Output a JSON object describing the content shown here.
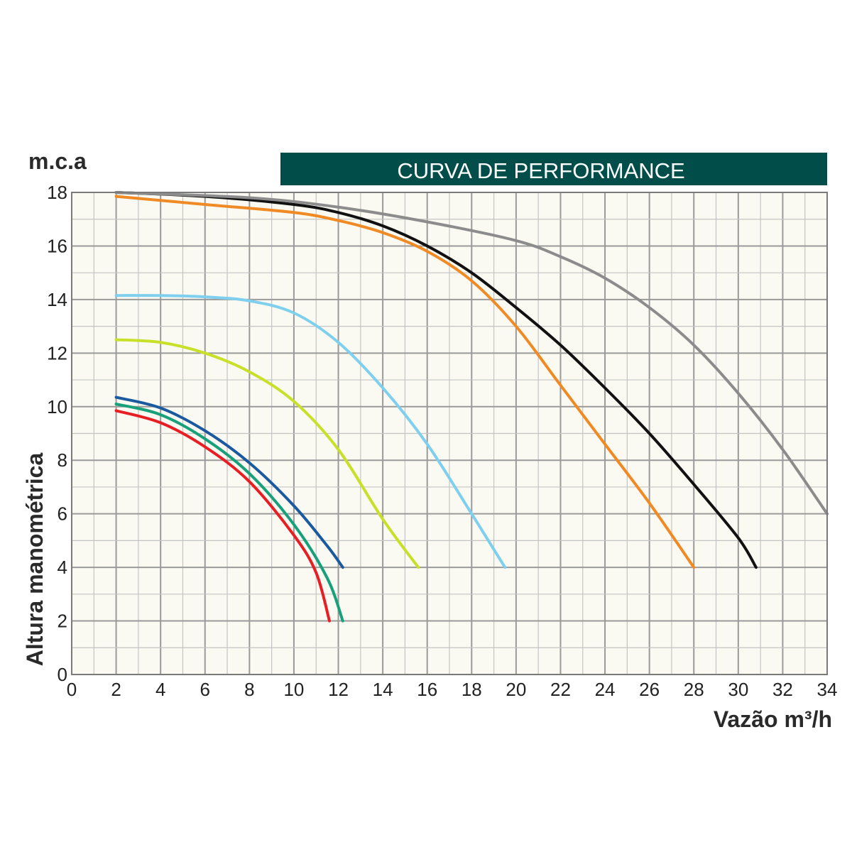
{
  "chart_data": {
    "type": "line",
    "title": "CURVA DE PERFORMANCE",
    "xlabel": "Vazão m³/h",
    "ylabel": "Altura manométrica",
    "y_unit": "m.c.a",
    "xlim": [
      0,
      34
    ],
    "ylim": [
      0,
      18
    ],
    "x_ticks": [
      "0",
      "2",
      "4",
      "6",
      "8",
      "10",
      "12",
      "14",
      "16",
      "18",
      "20",
      "22",
      "24",
      "26",
      "28",
      "30",
      "32",
      "34"
    ],
    "y_ticks": [
      "0",
      "2",
      "4",
      "6",
      "8",
      "10",
      "12",
      "14",
      "16",
      "18"
    ],
    "grid": true,
    "colors": {
      "title_bar": "#004d4a",
      "grid_major": "#9a9a9a",
      "grid_minor": "#c4c4c4",
      "plot_bg": "#fafaf2"
    },
    "series": [
      {
        "color": "#e81e25",
        "points": [
          [
            2,
            9.85
          ],
          [
            4,
            9.4
          ],
          [
            6,
            8.5
          ],
          [
            8,
            7.2
          ],
          [
            10,
            5.2
          ],
          [
            11,
            3.8
          ],
          [
            11.6,
            2.0
          ]
        ]
      },
      {
        "color": "#17a07a",
        "points": [
          [
            2,
            10.1
          ],
          [
            4,
            9.7
          ],
          [
            6,
            8.8
          ],
          [
            8,
            7.5
          ],
          [
            10,
            5.6
          ],
          [
            11.5,
            3.6
          ],
          [
            12.2,
            2.0
          ]
        ]
      },
      {
        "color": "#1c5aa0",
        "points": [
          [
            2,
            10.35
          ],
          [
            4,
            9.95
          ],
          [
            6,
            9.1
          ],
          [
            8,
            7.9
          ],
          [
            10,
            6.3
          ],
          [
            11.5,
            4.8
          ],
          [
            12.2,
            4.0
          ]
        ]
      },
      {
        "color": "#c8e02a",
        "points": [
          [
            2,
            12.5
          ],
          [
            4,
            12.4
          ],
          [
            6,
            12.0
          ],
          [
            8,
            11.3
          ],
          [
            10,
            10.2
          ],
          [
            12,
            8.4
          ],
          [
            14,
            5.8
          ],
          [
            15.6,
            4.0
          ]
        ]
      },
      {
        "color": "#7fcfee",
        "points": [
          [
            2,
            14.15
          ],
          [
            4,
            14.15
          ],
          [
            6,
            14.1
          ],
          [
            8,
            13.95
          ],
          [
            10,
            13.5
          ],
          [
            12,
            12.4
          ],
          [
            14,
            10.7
          ],
          [
            16,
            8.6
          ],
          [
            18,
            6.0
          ],
          [
            19.5,
            4.0
          ]
        ]
      },
      {
        "color": "#f08a24",
        "points": [
          [
            2,
            17.85
          ],
          [
            6,
            17.55
          ],
          [
            10,
            17.25
          ],
          [
            12,
            16.95
          ],
          [
            14,
            16.5
          ],
          [
            16,
            15.8
          ],
          [
            18,
            14.7
          ],
          [
            20,
            13.0
          ],
          [
            22,
            10.8
          ],
          [
            24,
            8.6
          ],
          [
            26,
            6.4
          ],
          [
            28.0,
            4.0
          ]
        ]
      },
      {
        "color": "#111111",
        "points": [
          [
            2,
            18.0
          ],
          [
            6,
            17.85
          ],
          [
            10,
            17.55
          ],
          [
            12,
            17.25
          ],
          [
            14,
            16.75
          ],
          [
            16,
            16.0
          ],
          [
            18,
            15.0
          ],
          [
            20,
            13.7
          ],
          [
            22,
            12.3
          ],
          [
            24,
            10.7
          ],
          [
            26,
            9.0
          ],
          [
            28,
            7.1
          ],
          [
            30,
            5.1
          ],
          [
            30.8,
            4.0
          ]
        ]
      },
      {
        "color": "#8c8c8c",
        "points": [
          [
            2,
            18.0
          ],
          [
            8,
            17.8
          ],
          [
            12,
            17.45
          ],
          [
            16,
            16.9
          ],
          [
            20,
            16.2
          ],
          [
            22,
            15.6
          ],
          [
            24,
            14.8
          ],
          [
            26,
            13.7
          ],
          [
            28,
            12.3
          ],
          [
            30,
            10.5
          ],
          [
            32,
            8.4
          ],
          [
            34,
            6.0
          ]
        ]
      }
    ]
  }
}
